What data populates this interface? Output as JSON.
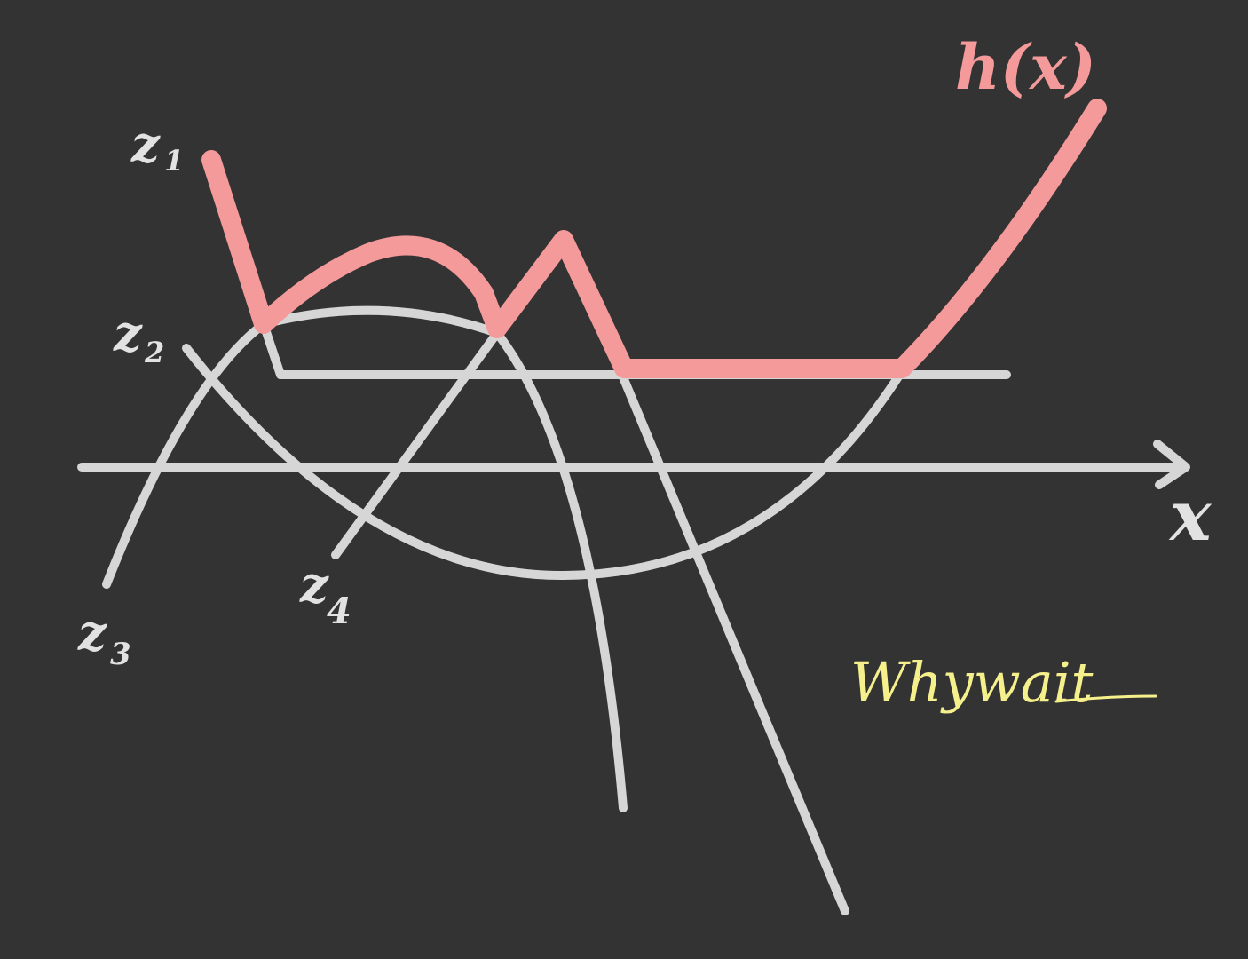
{
  "labels": {
    "function": "h(x)",
    "axis": "x",
    "z1": {
      "base": "z",
      "sub": "1"
    },
    "z2": {
      "base": "z",
      "sub": "2"
    },
    "z3": {
      "base": "z",
      "sub": "3"
    },
    "z4": {
      "base": "z",
      "sub": "4"
    }
  },
  "signature": "Whywait",
  "colors": {
    "background": "#333333",
    "curves": "#d6d6d6",
    "max_curve": "#f59a9a",
    "label": "#e2e2e2",
    "signature": "#f5f08c"
  }
}
